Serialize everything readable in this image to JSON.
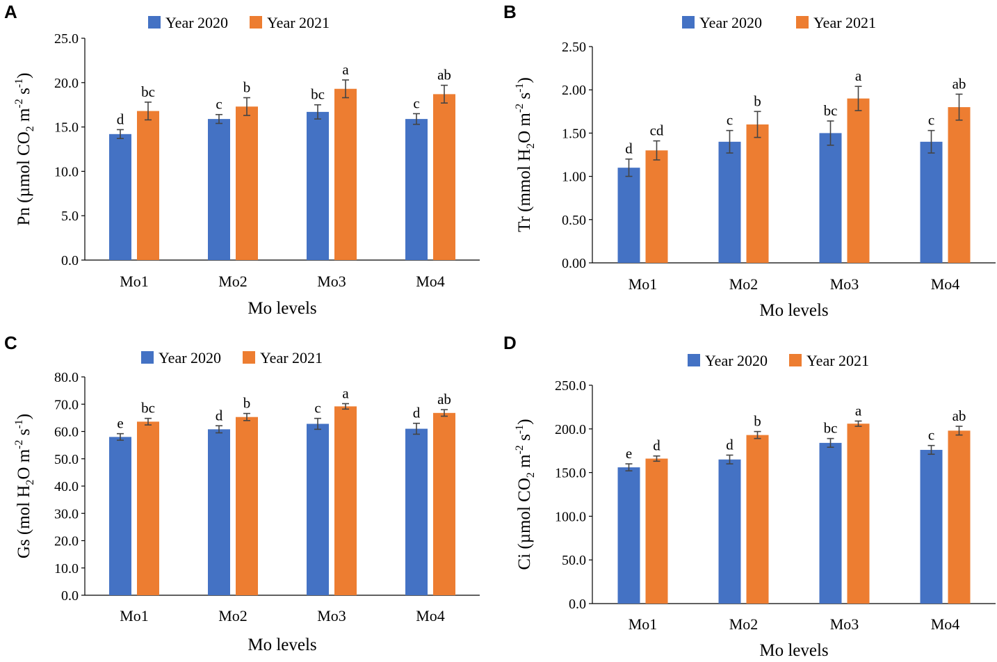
{
  "colors": {
    "year2020": "#4472C4",
    "year2021": "#ED7D31",
    "error_bar": "#444444"
  },
  "chart_data": [
    {
      "panel": "A",
      "type": "bar",
      "ylabel_parts": [
        "Pn (µmol CO",
        "2",
        " m",
        "-2",
        " s",
        "-1",
        ")"
      ],
      "xlabel": "Mo levels",
      "categories": [
        "Mo1",
        "Mo2",
        "Mo3",
        "Mo4"
      ],
      "ylim": [
        0,
        25
      ],
      "yticks": [
        "0.0",
        "5.0",
        "10.0",
        "15.0",
        "20.0",
        "25.0"
      ],
      "series": [
        {
          "name": "Year 2020",
          "values": [
            14.2,
            15.9,
            16.7,
            15.9
          ],
          "errors": [
            0.5,
            0.5,
            0.8,
            0.6
          ],
          "letters": [
            "d",
            "c",
            "bc",
            "c"
          ]
        },
        {
          "name": "Year 2021",
          "values": [
            16.8,
            17.3,
            19.3,
            18.7
          ],
          "errors": [
            1.0,
            1.0,
            1.0,
            1.0
          ],
          "letters": [
            "bc",
            "b",
            "a",
            "ab"
          ]
        }
      ]
    },
    {
      "panel": "B",
      "type": "bar",
      "ylabel_parts": [
        "Tr (mmol H",
        "2",
        "O m",
        "-2",
        " s",
        "-1",
        ")"
      ],
      "xlabel": "Mo levels",
      "categories": [
        "Mo1",
        "Mo2",
        "Mo3",
        "Mo4"
      ],
      "ylim": [
        0,
        2.5
      ],
      "yticks": [
        "0.00",
        "0.50",
        "1.00",
        "1.50",
        "2.00",
        "2.50"
      ],
      "series": [
        {
          "name": "Year 2020",
          "values": [
            1.1,
            1.4,
            1.5,
            1.4
          ],
          "errors": [
            0.1,
            0.13,
            0.14,
            0.13
          ],
          "letters": [
            "d",
            "c",
            "bc",
            "c"
          ]
        },
        {
          "name": "Year 2021",
          "values": [
            1.3,
            1.6,
            1.9,
            1.8
          ],
          "errors": [
            0.11,
            0.15,
            0.14,
            0.15
          ],
          "letters": [
            "cd",
            "b",
            "a",
            "ab"
          ]
        }
      ]
    },
    {
      "panel": "C",
      "type": "bar",
      "ylabel_parts": [
        "Gs (mol H",
        "2",
        "O m",
        "-2",
        " s",
        "-1",
        ")"
      ],
      "xlabel": "Mo levels",
      "categories": [
        "Mo1",
        "Mo2",
        "Mo3",
        "Mo4"
      ],
      "ylim": [
        0,
        80
      ],
      "yticks": [
        "0.0",
        "10.0",
        "20.0",
        "30.0",
        "40.0",
        "50.0",
        "60.0",
        "70.0",
        "80.0"
      ],
      "series": [
        {
          "name": "Year 2020",
          "values": [
            58.0,
            60.8,
            62.8,
            61.0
          ],
          "errors": [
            1.2,
            1.3,
            2.0,
            2.0
          ],
          "letters": [
            "e",
            "d",
            "c",
            "d"
          ]
        },
        {
          "name": "Year 2021",
          "values": [
            63.6,
            65.3,
            69.2,
            66.8
          ],
          "errors": [
            1.2,
            1.3,
            1.0,
            1.2
          ],
          "letters": [
            "bc",
            "b",
            "a",
            "ab"
          ]
        }
      ]
    },
    {
      "panel": "D",
      "type": "bar",
      "ylabel_parts": [
        "Ci (µmol CO",
        "2",
        " m",
        "-2",
        " s",
        "-1",
        ")"
      ],
      "xlabel": "Mo levels",
      "categories": [
        "Mo1",
        "Mo2",
        "Mo3",
        "Mo4"
      ],
      "ylim": [
        0,
        250
      ],
      "yticks": [
        "0.0",
        "50.0",
        "100.0",
        "150.0",
        "200.0",
        "250.0"
      ],
      "series": [
        {
          "name": "Year 2020",
          "values": [
            156,
            165,
            184,
            176
          ],
          "errors": [
            4,
            5,
            5,
            5
          ],
          "letters": [
            "e",
            "d",
            "bc",
            "c"
          ]
        },
        {
          "name": "Year 2021",
          "values": [
            166,
            193,
            206,
            198
          ],
          "errors": [
            3,
            4,
            3,
            5
          ],
          "letters": [
            "d",
            "b",
            "a",
            "ab"
          ]
        }
      ]
    }
  ]
}
